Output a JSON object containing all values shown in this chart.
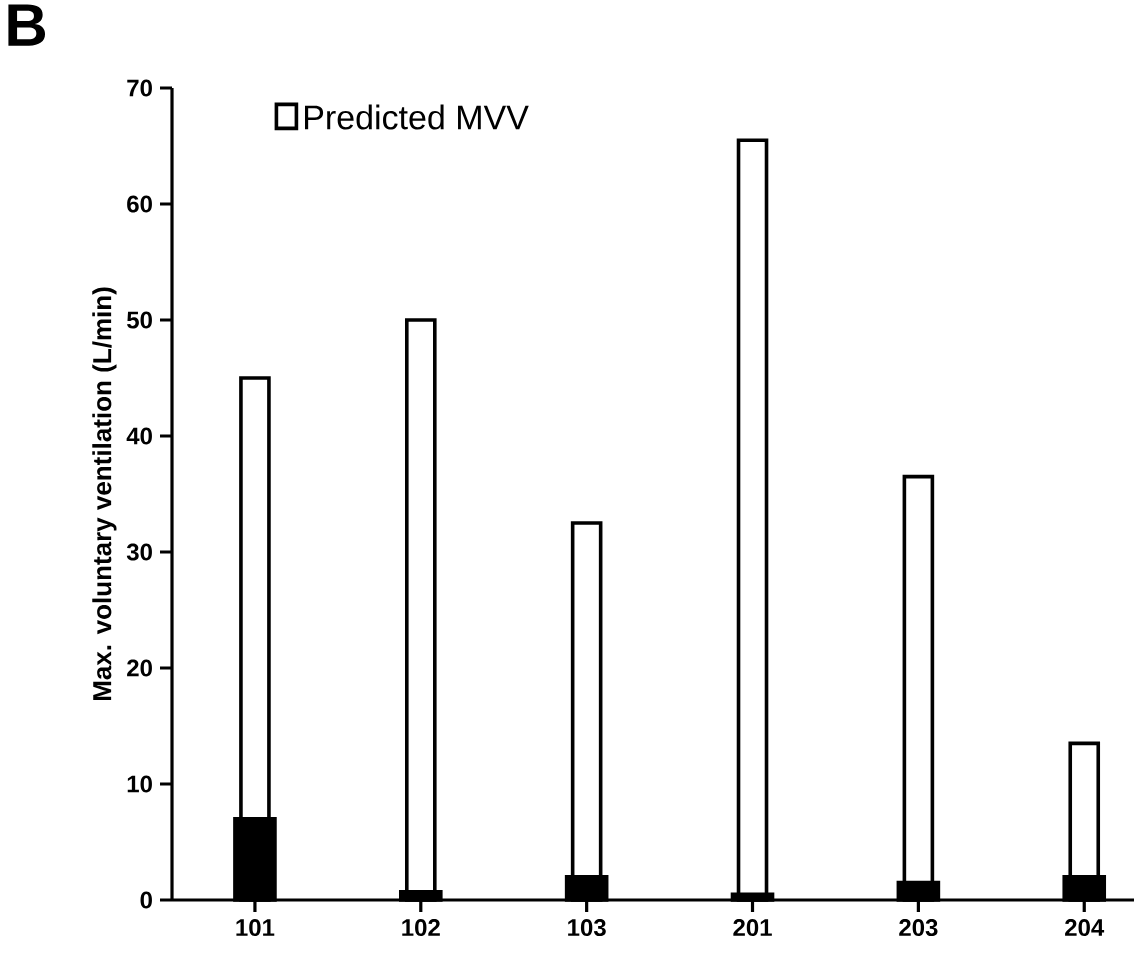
{
  "chart_data": {
    "type": "bar",
    "ylabel": "Max. voluntary ventilation (L/min)",
    "annotations": [
      "B"
    ],
    "categories": [
      "101",
      "102",
      "103",
      "201",
      "203",
      "204"
    ],
    "series": [
      {
        "name": "Predicted MVV",
        "color": "#ffffff",
        "values": [
          45,
          50,
          32.5,
          65.5,
          36.5,
          13.5
        ]
      },
      {
        "color": "#000000",
        "values": [
          7,
          0.7,
          2,
          0.5,
          1.5,
          2
        ]
      }
    ],
    "ylim": [
      0,
      70
    ],
    "yticks": [
      0,
      10,
      20,
      30,
      40,
      50,
      60,
      70
    ],
    "legend": "top left"
  }
}
